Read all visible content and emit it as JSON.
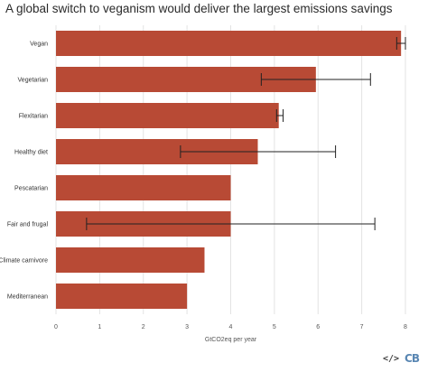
{
  "chart_data": {
    "type": "bar",
    "orientation": "horizontal",
    "title": "A global switch to veganism would deliver the largest emissions savings",
    "xlabel": "GtCO2eq per year",
    "ylabel": "",
    "xlim": [
      0,
      8
    ],
    "xticks": [
      "0",
      "1",
      "2",
      "3",
      "4",
      "5",
      "6",
      "7",
      "8"
    ],
    "categories": [
      "Vegan",
      "Vegetarian",
      "Flexitarian",
      "Healthy diet",
      "Pescatarian",
      "Fair and frugal",
      "Climate carnivore",
      "Mediterranean"
    ],
    "values": [
      7.9,
      5.95,
      5.1,
      4.62,
      4.0,
      4.0,
      3.4,
      3.0
    ],
    "error_bars": [
      [
        7.8,
        8.0
      ],
      [
        4.7,
        7.2
      ],
      [
        5.05,
        5.2
      ],
      [
        2.85,
        6.4
      ],
      null,
      [
        0.7,
        7.3
      ],
      null,
      null
    ],
    "bar_color": "#b84a35",
    "grid": true,
    "legend": "none"
  },
  "footer": {
    "embed_icon": "</>",
    "logo_text": "CB"
  }
}
